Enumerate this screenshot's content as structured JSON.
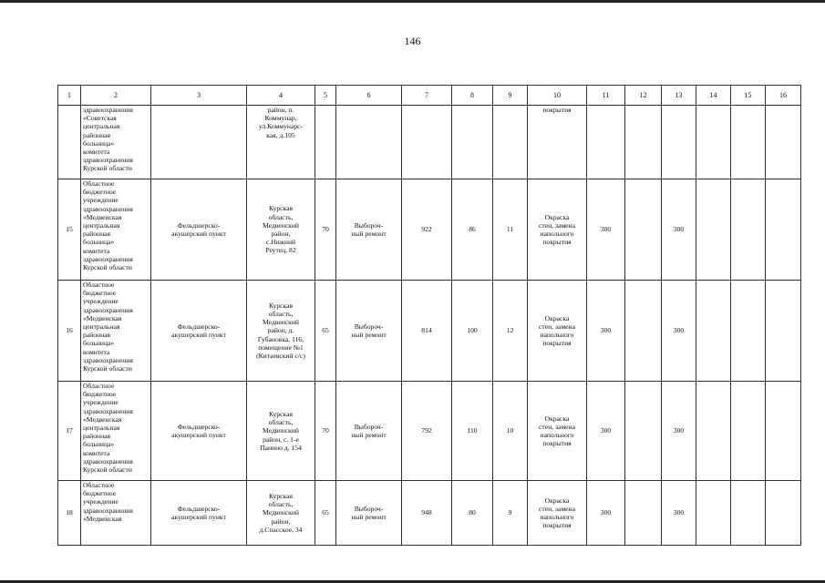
{
  "page_number": "146",
  "columns": [
    "1",
    "2",
    "3",
    "4",
    "5",
    "6",
    "7",
    "8",
    "9",
    "10",
    "11",
    "12",
    "13",
    "14",
    "15",
    "16"
  ],
  "rows": [
    {
      "cells": [
        "",
        "здравоохранения\n«Советская\nцентральная\nрайонная\nбольница»\nкомитета\nздравоохранения\nКурской области",
        "",
        "район, п.\nКоммунар,\nул.Коммунарс-\nкая, д.105",
        "",
        "",
        "",
        "",
        "",
        "покрытия",
        "",
        "",
        "",
        "",
        "",
        ""
      ]
    },
    {
      "cells": [
        "15",
        "Областное\nбюджетное\nучреждение\nздравоохранения\n«Медвенская\nцентральная\nрайонная\nбольница»\nкомитета\nздравоохранения\nКурской области",
        "Фельдшерско-\nакушерский пункт",
        "Курская\nобласть,\nМедвенский\nрайон,\nс.Нижний\nРеутец, 82",
        "70",
        "Выбороч-\nный ремонт",
        "922",
        "86",
        "11",
        "Окраска\nстен, замена\nнапольного\nпокрытия",
        "300",
        "",
        "300",
        "",
        "",
        ""
      ]
    },
    {
      "cells": [
        "16",
        "Областное\nбюджетное\nучреждение\nздравоохранения\n«Медвенская\nцентральная\nрайонная\nбольница»\nкомитета\nздравоохранения\nКурской области",
        "Фельдшерско-\nакушерский пункт",
        "Курская\nобласть,\nМедвенский\nрайон, д.\nГубановка, 116,\nпомещение №1\n(Китаевский с/с)",
        "65",
        "Выбороч-\nный ремонт",
        "814",
        "100",
        "12",
        "Окраска\nстен, замена\nнапольного\nпокрытия",
        "300",
        "",
        "300",
        "",
        "",
        ""
      ]
    },
    {
      "cells": [
        "17",
        "Областное\nбюджетное\nучреждение\nздравоохранения\n«Медвенская\nцентральная\nрайонная\nбольница»\nкомитета\nздравоохранения\nКурской области",
        "Фельдшерско-\nакушерский пункт",
        "Курская\nобласть,\nМедвенский\nрайон, с. 1-е\nПанино д. 154",
        "70",
        "Выбороч-\nный ремонт",
        "792",
        "110",
        "10",
        "Окраска\nстен, замена\nнапольного\nпокрытия",
        "300",
        "",
        "300",
        "",
        "",
        ""
      ]
    },
    {
      "cells": [
        "18",
        "Областное\nбюджетное\nучреждение\nздравоохранения\n«Медвенская",
        "Фельдшерско-\nакушерский пункт",
        "Курская\nобласть,\nМедвенский\nрайон,\nд.Спасское, 34",
        "65",
        "Выбороч-\nный ремонт",
        "948",
        "80",
        "9",
        "Окраска\nстен, замена\nнапольного\nпокрытия",
        "300",
        "",
        "300",
        "",
        "",
        ""
      ]
    }
  ]
}
